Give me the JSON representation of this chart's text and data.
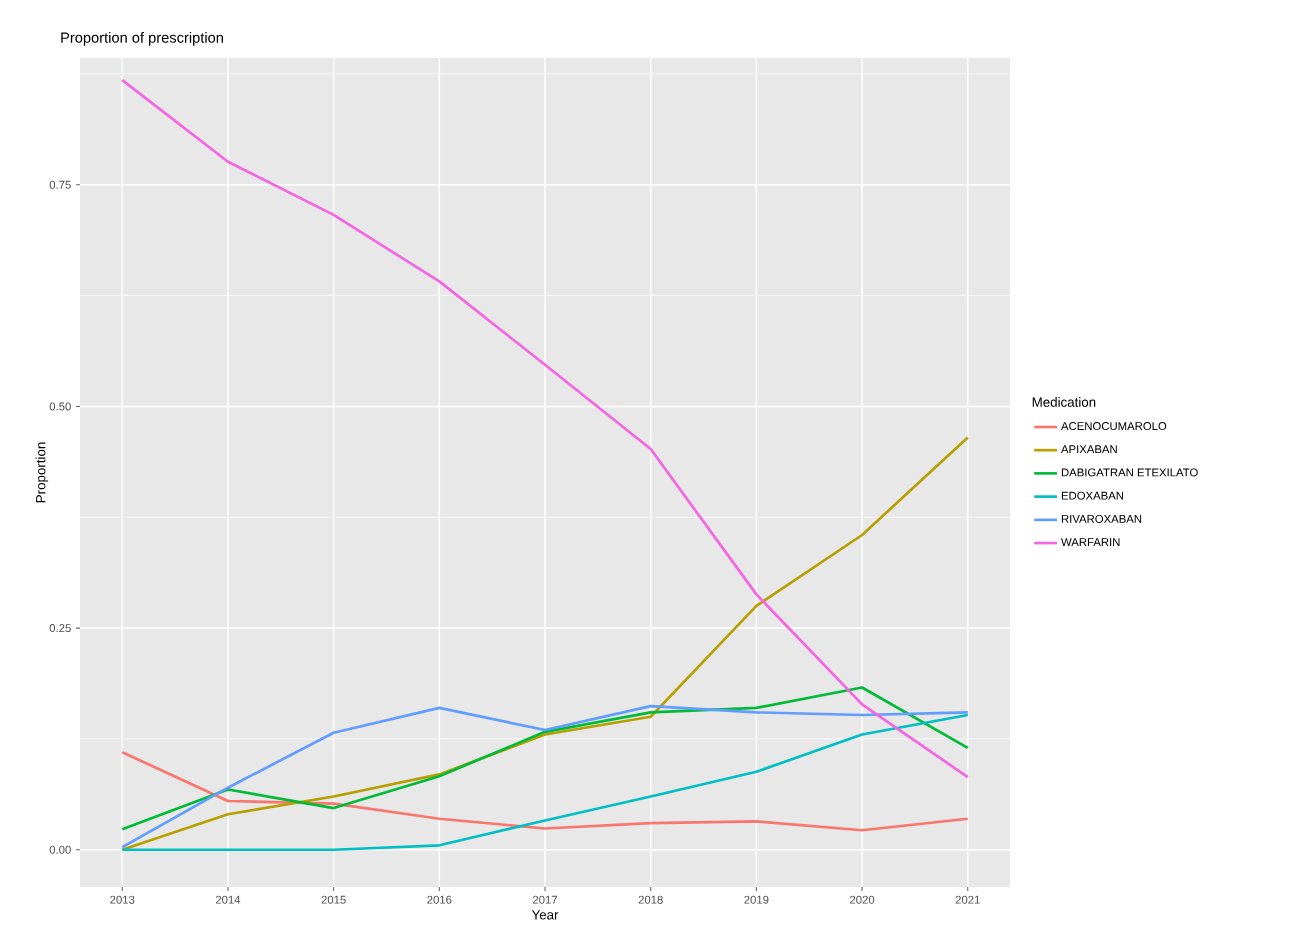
{
  "chart_data": {
    "type": "line",
    "title": "Proportion of prescription",
    "xlabel": "Year",
    "ylabel": "Proportion",
    "legend_title": "Medication",
    "x": [
      2013,
      2014,
      2015,
      2016,
      2017,
      2018,
      2019,
      2020,
      2021
    ],
    "series": [
      {
        "name": "ACENOCUMAROLO",
        "color": "#f8766d",
        "values": [
          0.11,
          0.055,
          0.052,
          0.035,
          0.024,
          0.03,
          0.032,
          0.022,
          0.035
        ]
      },
      {
        "name": "APIXABAN",
        "color": "#b79f00",
        "values": [
          0.0,
          0.04,
          0.06,
          0.085,
          0.13,
          0.15,
          0.275,
          0.355,
          0.465
        ]
      },
      {
        "name": "DABIGATRAN ETEXILATO",
        "color": "#00ba38",
        "values": [
          0.023,
          0.068,
          0.047,
          0.083,
          0.133,
          0.155,
          0.16,
          0.183,
          0.115
        ]
      },
      {
        "name": "EDOXABAN",
        "color": "#00bfc4",
        "values": [
          0.0,
          0.0,
          0.0,
          0.005,
          0.033,
          0.06,
          0.088,
          0.13,
          0.152
        ]
      },
      {
        "name": "RIVAROXABAN",
        "color": "#619cff",
        "values": [
          0.003,
          0.07,
          0.132,
          0.16,
          0.135,
          0.162,
          0.155,
          0.152,
          0.155
        ]
      },
      {
        "name": "WARFARIN",
        "color": "#f564e3",
        "values": [
          0.868,
          0.776,
          0.716,
          0.641,
          0.547,
          0.452,
          0.288,
          0.164,
          0.082
        ]
      }
    ],
    "xlim": [
      2012.6,
      2021.4
    ],
    "ylim": [
      -0.042,
      0.893
    ],
    "xticks": [
      2013,
      2014,
      2015,
      2016,
      2017,
      2018,
      2019,
      2020,
      2021
    ],
    "yticks": [
      {
        "value": 0,
        "label": "0.00"
      },
      {
        "value": 0.25,
        "label": "0.25"
      },
      {
        "value": 0.5,
        "label": "0.50"
      },
      {
        "value": 0.75,
        "label": "0.75"
      }
    ],
    "grid": true,
    "legend": "right",
    "marker": "none",
    "line_style": "solid"
  }
}
